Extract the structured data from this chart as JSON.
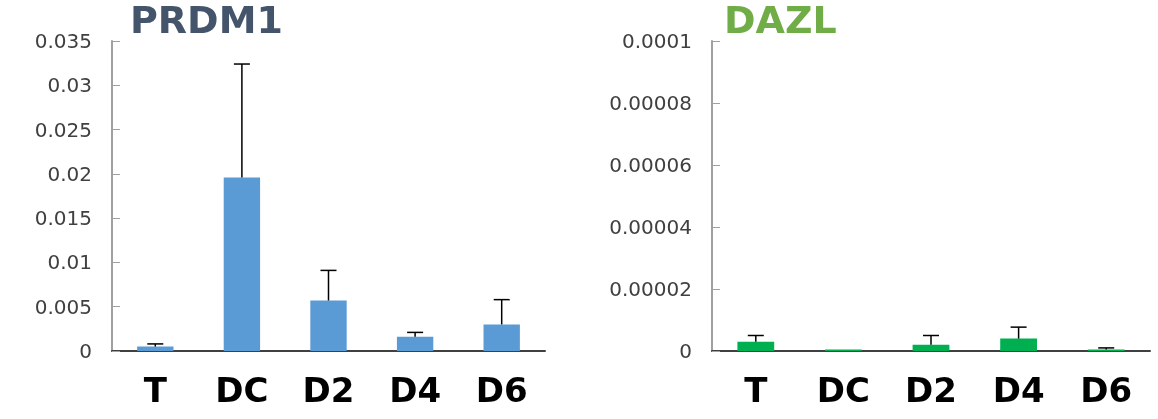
{
  "chart_data": [
    {
      "type": "bar",
      "title": "PRDM1",
      "categories": [
        "T",
        "DC",
        "D2",
        "D4",
        "D6"
      ],
      "series": [
        {
          "color": "#5b9bd5",
          "values": [
            0.0005,
            0.0196,
            0.0057,
            0.0016,
            0.003
          ],
          "errors": [
            [
              0.0005,
              0.0008
            ],
            [
              0.0196,
              0.0324
            ],
            [
              0.0057,
              0.0091
            ],
            [
              0.0016,
              0.0021
            ],
            [
              0.003,
              0.0058
            ]
          ]
        }
      ],
      "ylim": [
        0,
        0.035
      ],
      "yticks": [
        0,
        0.005,
        0.01,
        0.015,
        0.02,
        0.025,
        0.03,
        0.035
      ],
      "grid": false
    },
    {
      "type": "bar",
      "title": "DAZL",
      "categories": [
        "T",
        "DC",
        "D2",
        "D4",
        "D6"
      ],
      "series": [
        {
          "color": "#00b050",
          "values": [
            3e-06,
            5e-07,
            2e-06,
            4e-06,
            5e-07
          ],
          "errors": [
            [
              3e-06,
              5e-06
            ],
            null,
            [
              2e-06,
              5e-06
            ],
            [
              4e-06,
              7.7e-06
            ],
            [
              5e-07,
              1e-06
            ]
          ]
        }
      ],
      "ylim": [
        0,
        0.0001
      ],
      "yticks": [
        0,
        {
          "value": 2e-05,
          "label": "0.00002"
        },
        {
          "value": 4e-05,
          "label": "0.00004"
        },
        {
          "value": 6e-05,
          "label": "0.00006"
        },
        {
          "value": 8e-05,
          "label": "0.00008"
        },
        0.0001
      ],
      "grid": false
    }
  ]
}
